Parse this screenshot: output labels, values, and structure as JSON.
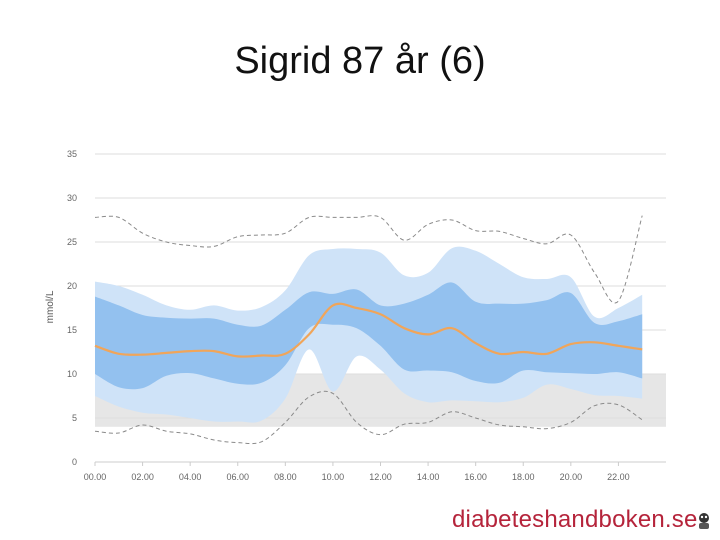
{
  "slide": {
    "title": "Sigrid 87 år (6)"
  },
  "footer": {
    "brand_text": "diabeteshandboken.se",
    "brand_icon": "mascot-icon"
  },
  "colors": {
    "outer_band": "#cfe3f8",
    "inner_band": "#93c1ef",
    "median_line": "#f0a55a",
    "percentile_lines": "#8a8a8a",
    "target_range": "#e6e6e6",
    "grid": "#dddddd",
    "brand": "#b5243b"
  },
  "chart_data": {
    "type": "area",
    "title": "",
    "ylabel": "mmol/L",
    "xlabel": "",
    "ylim": [
      0,
      35
    ],
    "xlim": [
      0,
      24
    ],
    "yticks": [
      "0",
      "5",
      "10",
      "15",
      "20",
      "25",
      "30",
      "35"
    ],
    "xticks": [
      "00.00",
      "02.00",
      "04.00",
      "06.00",
      "08.00",
      "10.00",
      "12.00",
      "14.00",
      "16.00",
      "18.00",
      "20.00",
      "22.00"
    ],
    "grid": true,
    "target_range": [
      4,
      10
    ],
    "x": [
      0,
      1,
      2,
      3,
      4,
      5,
      6,
      7,
      8,
      9,
      10,
      11,
      12,
      13,
      14,
      15,
      16,
      17,
      18,
      19,
      20,
      21,
      22,
      23
    ],
    "series": [
      {
        "values": [
          27.8,
          27.8,
          26,
          25,
          24.6,
          24.5,
          25.6,
          25.8,
          26,
          27.8,
          27.8,
          27.8,
          27.8,
          25.2,
          27,
          27.5,
          26.3,
          26.2,
          25.4,
          24.8,
          25.8,
          21.5,
          18.3,
          28
        ]
      },
      {
        "values": [
          20.5,
          20,
          19,
          17.8,
          17.3,
          17.8,
          17.2,
          17.6,
          19.5,
          23.5,
          24.2,
          24.2,
          23.8,
          21.2,
          21.5,
          24.3,
          24,
          22.5,
          21,
          20.8,
          21,
          16.5,
          17.5,
          19
        ]
      },
      {
        "values": [
          18.8,
          17.8,
          16.7,
          16.4,
          16.3,
          16.3,
          15.6,
          15.5,
          17.3,
          19.3,
          19.1,
          19.6,
          17.8,
          18,
          19,
          20.4,
          18.2,
          18,
          18,
          18.4,
          19.2,
          15.8,
          16,
          16.8
        ]
      },
      {
        "values": [
          13.2,
          12.3,
          12.2,
          12.4,
          12.6,
          12.6,
          12,
          12.1,
          12.3,
          14.5,
          17.8,
          17.5,
          16.8,
          15.2,
          14.5,
          15.2,
          13.5,
          12.3,
          12.5,
          12.3,
          13.4,
          13.6,
          13.2,
          12.8
        ]
      },
      {
        "values": [
          10,
          8.5,
          8.4,
          9.8,
          10.1,
          9.5,
          8.9,
          9,
          11,
          15.2,
          15.6,
          15.2,
          13.2,
          10.5,
          10.4,
          10.2,
          9.2,
          9,
          10.4,
          10.2,
          10.1,
          10,
          10.2,
          9.5
        ]
      },
      {
        "values": [
          7.5,
          6.3,
          5.6,
          5.4,
          5,
          4.6,
          4.6,
          4.7,
          7.2,
          12.8,
          8,
          12,
          10.5,
          7.8,
          6.8,
          7,
          6.9,
          6.8,
          7.3,
          8.8,
          8.3,
          7.6,
          7.5,
          7.2
        ]
      },
      {
        "values": [
          3.5,
          3.3,
          4.2,
          3.5,
          3.2,
          2.5,
          2.2,
          2.3,
          4.5,
          7.4,
          7.8,
          4.5,
          3.1,
          4.3,
          4.5,
          5.7,
          5,
          4.2,
          4,
          3.8,
          4.5,
          6.4,
          6.5,
          4.8
        ]
      }
    ]
  }
}
